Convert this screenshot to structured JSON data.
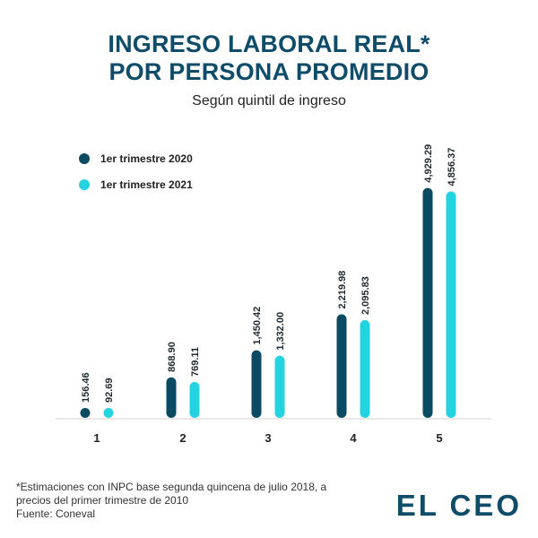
{
  "title_lines": [
    "INGRESO LABORAL REAL*",
    "POR PERSONA PROMEDIO"
  ],
  "subtitle": "Según quintil de ingreso",
  "footnote_lines": [
    "*Estimaciones con INPC base segunda quincena de julio 2018, a",
    "precios del primer trimestre de 2010",
    "Fuente: Coneval"
  ],
  "brand": "EL CEO",
  "colors": {
    "series_2020": "#0b4a63",
    "series_2021": "#24d3e0",
    "title": "#0f4c6a"
  },
  "chart_data": {
    "type": "bar",
    "categories": [
      "1",
      "2",
      "3",
      "4",
      "5"
    ],
    "series": [
      {
        "name": "1er trimestre 2020",
        "values": [
          156.46,
          868.9,
          1450.42,
          2219.98,
          4929.29
        ],
        "labels": [
          "156.46",
          "868.90",
          "1,450.42",
          "2,219.98",
          "4,929.29"
        ]
      },
      {
        "name": "1er trimestre 2021",
        "values": [
          92.69,
          769.11,
          1332.0,
          2095.83,
          4856.37
        ],
        "labels": [
          "92.69",
          "769.11",
          "1,332.00",
          "2,095.83",
          "4,856.37"
        ]
      }
    ],
    "ylim": [
      0,
      5000
    ],
    "legend": "top-left",
    "grid": false
  }
}
